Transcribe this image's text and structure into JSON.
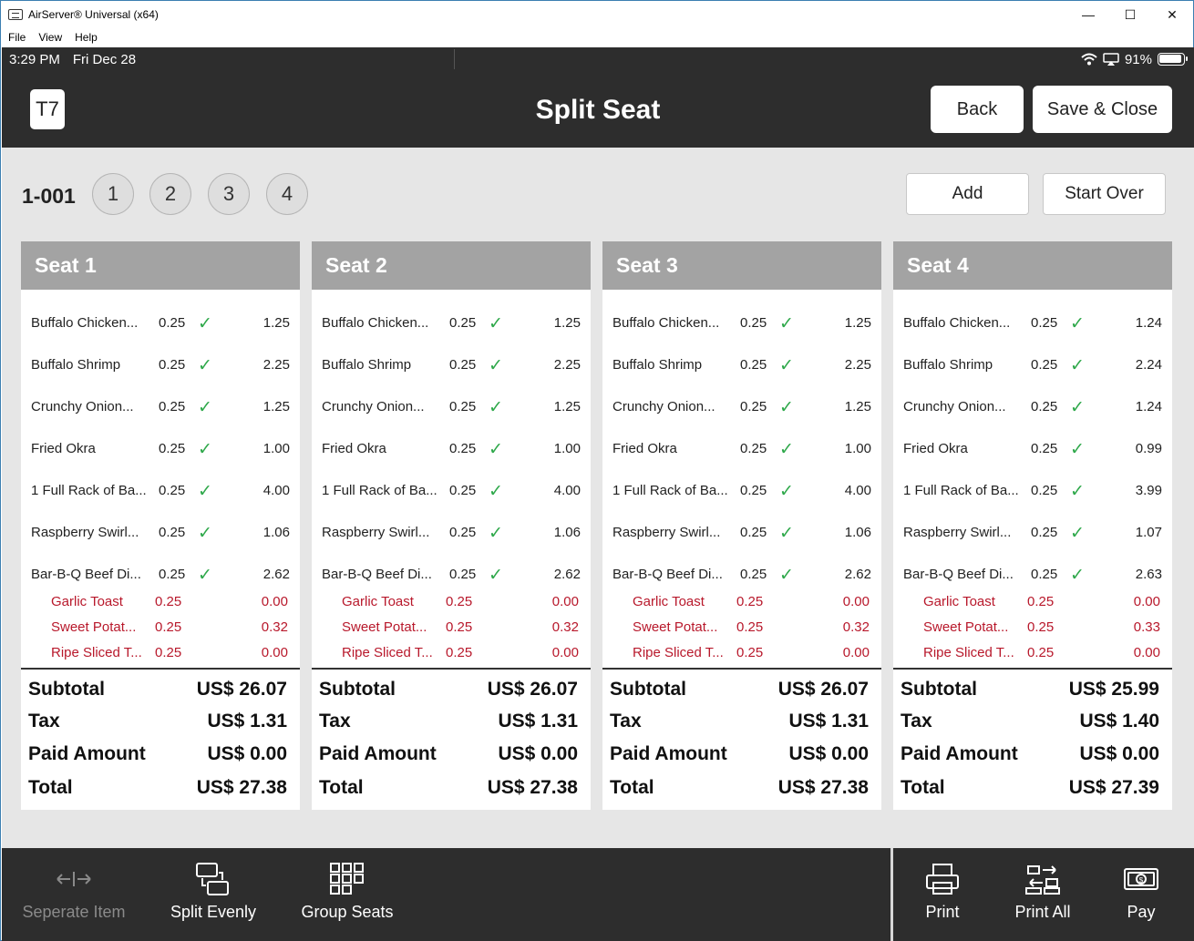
{
  "window": {
    "title": "AirServer® Universal (x64)",
    "controls": {
      "minimize": "—",
      "maximize": "☐",
      "close": "✕"
    },
    "menu": [
      "File",
      "View",
      "Help"
    ]
  },
  "status": {
    "time": "3:29 PM",
    "date": "Fri Dec 28",
    "battery": "91%"
  },
  "header": {
    "table_label": "T7",
    "title": "Split Seat",
    "back_label": "Back",
    "save_label": "Save & Close"
  },
  "seatbar": {
    "order_number": "1-001",
    "seats": [
      "1",
      "2",
      "3",
      "4"
    ],
    "add_label": "Add",
    "start_over_label": "Start Over"
  },
  "seats": [
    {
      "title": "Seat 1",
      "items": [
        {
          "name": "Buffalo Chicken...",
          "qty": "0.25",
          "amount": "1.25"
        },
        {
          "name": "Buffalo Shrimp",
          "qty": "0.25",
          "amount": "2.25"
        },
        {
          "name": "Crunchy Onion...",
          "qty": "0.25",
          "amount": "1.25"
        },
        {
          "name": "Fried Okra",
          "qty": "0.25",
          "amount": "1.00"
        },
        {
          "name": "1 Full Rack of Ba...",
          "qty": "0.25",
          "amount": "4.00"
        },
        {
          "name": "Raspberry Swirl...",
          "qty": "0.25",
          "amount": "1.06"
        },
        {
          "name": "Bar-B-Q Beef Di...",
          "qty": "0.25",
          "amount": "2.62"
        }
      ],
      "modifiers": [
        {
          "name": "Garlic Toast",
          "qty": "0.25",
          "amount": "0.00"
        },
        {
          "name": "Sweet Potat...",
          "qty": "0.25",
          "amount": "0.32"
        },
        {
          "name": "Ripe Sliced T...",
          "qty": "0.25",
          "amount": "0.00"
        }
      ],
      "totals": {
        "subtotal": "US$ 26.07",
        "tax": "US$ 1.31",
        "paid": "US$ 0.00",
        "total": "US$ 27.38"
      }
    },
    {
      "title": "Seat 2",
      "items": [
        {
          "name": "Buffalo Chicken...",
          "qty": "0.25",
          "amount": "1.25"
        },
        {
          "name": "Buffalo Shrimp",
          "qty": "0.25",
          "amount": "2.25"
        },
        {
          "name": "Crunchy Onion...",
          "qty": "0.25",
          "amount": "1.25"
        },
        {
          "name": "Fried Okra",
          "qty": "0.25",
          "amount": "1.00"
        },
        {
          "name": "1 Full Rack of Ba...",
          "qty": "0.25",
          "amount": "4.00"
        },
        {
          "name": "Raspberry Swirl...",
          "qty": "0.25",
          "amount": "1.06"
        },
        {
          "name": "Bar-B-Q Beef Di...",
          "qty": "0.25",
          "amount": "2.62"
        }
      ],
      "modifiers": [
        {
          "name": "Garlic Toast",
          "qty": "0.25",
          "amount": "0.00"
        },
        {
          "name": "Sweet Potat...",
          "qty": "0.25",
          "amount": "0.32"
        },
        {
          "name": "Ripe Sliced T...",
          "qty": "0.25",
          "amount": "0.00"
        }
      ],
      "totals": {
        "subtotal": "US$ 26.07",
        "tax": "US$ 1.31",
        "paid": "US$ 0.00",
        "total": "US$ 27.38"
      }
    },
    {
      "title": "Seat 3",
      "items": [
        {
          "name": "Buffalo Chicken...",
          "qty": "0.25",
          "amount": "1.25"
        },
        {
          "name": "Buffalo Shrimp",
          "qty": "0.25",
          "amount": "2.25"
        },
        {
          "name": "Crunchy Onion...",
          "qty": "0.25",
          "amount": "1.25"
        },
        {
          "name": "Fried Okra",
          "qty": "0.25",
          "amount": "1.00"
        },
        {
          "name": "1 Full Rack of Ba...",
          "qty": "0.25",
          "amount": "4.00"
        },
        {
          "name": "Raspberry Swirl...",
          "qty": "0.25",
          "amount": "1.06"
        },
        {
          "name": "Bar-B-Q Beef Di...",
          "qty": "0.25",
          "amount": "2.62"
        }
      ],
      "modifiers": [
        {
          "name": "Garlic Toast",
          "qty": "0.25",
          "amount": "0.00"
        },
        {
          "name": "Sweet Potat...",
          "qty": "0.25",
          "amount": "0.32"
        },
        {
          "name": "Ripe Sliced T...",
          "qty": "0.25",
          "amount": "0.00"
        }
      ],
      "totals": {
        "subtotal": "US$ 26.07",
        "tax": "US$ 1.31",
        "paid": "US$ 0.00",
        "total": "US$ 27.38"
      }
    },
    {
      "title": "Seat 4",
      "items": [
        {
          "name": "Buffalo Chicken...",
          "qty": "0.25",
          "amount": "1.24"
        },
        {
          "name": "Buffalo Shrimp",
          "qty": "0.25",
          "amount": "2.24"
        },
        {
          "name": "Crunchy Onion...",
          "qty": "0.25",
          "amount": "1.24"
        },
        {
          "name": "Fried Okra",
          "qty": "0.25",
          "amount": "0.99"
        },
        {
          "name": "1 Full Rack of Ba...",
          "qty": "0.25",
          "amount": "3.99"
        },
        {
          "name": "Raspberry Swirl...",
          "qty": "0.25",
          "amount": "1.07"
        },
        {
          "name": "Bar-B-Q Beef Di...",
          "qty": "0.25",
          "amount": "2.63"
        }
      ],
      "modifiers": [
        {
          "name": "Garlic Toast",
          "qty": "0.25",
          "amount": "0.00"
        },
        {
          "name": "Sweet Potat...",
          "qty": "0.25",
          "amount": "0.33"
        },
        {
          "name": "Ripe Sliced T...",
          "qty": "0.25",
          "amount": "0.00"
        }
      ],
      "totals": {
        "subtotal": "US$ 25.99",
        "tax": "US$ 1.40",
        "paid": "US$ 0.00",
        "total": "US$ 27.39"
      }
    }
  ],
  "totals_labels": {
    "subtotal": "Subtotal",
    "tax": "Tax",
    "paid": "Paid Amount",
    "total": "Total"
  },
  "footer": {
    "separate_label": "Seperate Item",
    "split_evenly_label": "Split Evenly",
    "group_seats_label": "Group Seats",
    "print_label": "Print",
    "print_all_label": "Print All",
    "pay_label": "Pay"
  },
  "colors": {
    "header_bg": "#2d2d2d",
    "seat_header_bg": "#a3a3a3",
    "check": "#2ea84a",
    "modifier_red": "#b8182b",
    "page_bg": "#e6e6e6"
  }
}
